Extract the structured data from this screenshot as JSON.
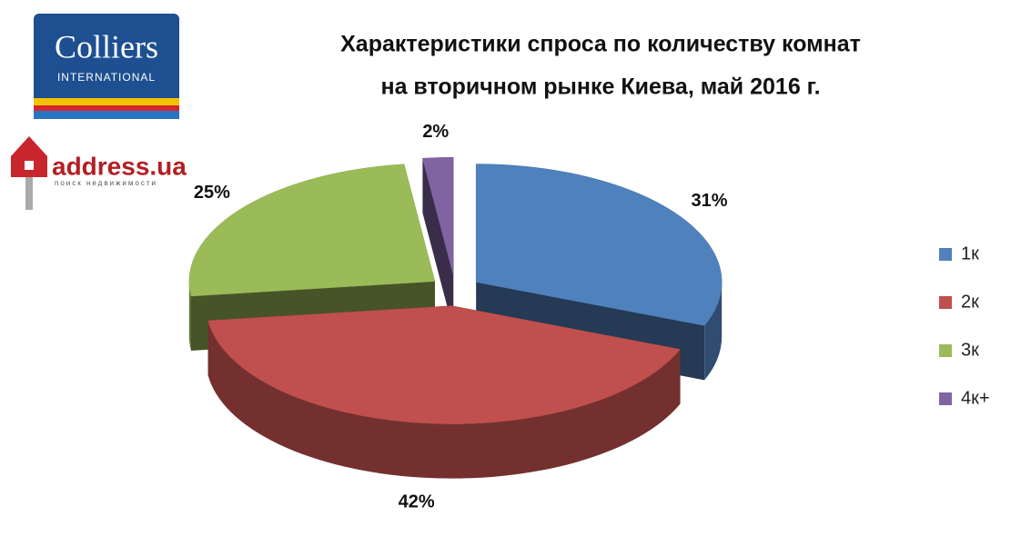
{
  "logos": {
    "colliers": "Colliers",
    "colliers_sub": "INTERNATIONAL",
    "address": "address.ua",
    "address_sub": "поиск недвижимости"
  },
  "chart_data": {
    "type": "pie3d",
    "title": [
      "Характеристики спроса по количеству комнат",
      "на вторичном рынке Киева, май 2016 г."
    ],
    "categories": [
      "1к",
      "2к",
      "3к",
      "4к+"
    ],
    "values": [
      31,
      42,
      25,
      2
    ],
    "value_labels": [
      "31%",
      "42%",
      "25%",
      "2%"
    ],
    "colors": [
      "#4f81bd",
      "#c0504d",
      "#9bbb59",
      "#8064a2"
    ],
    "legend": "right"
  }
}
